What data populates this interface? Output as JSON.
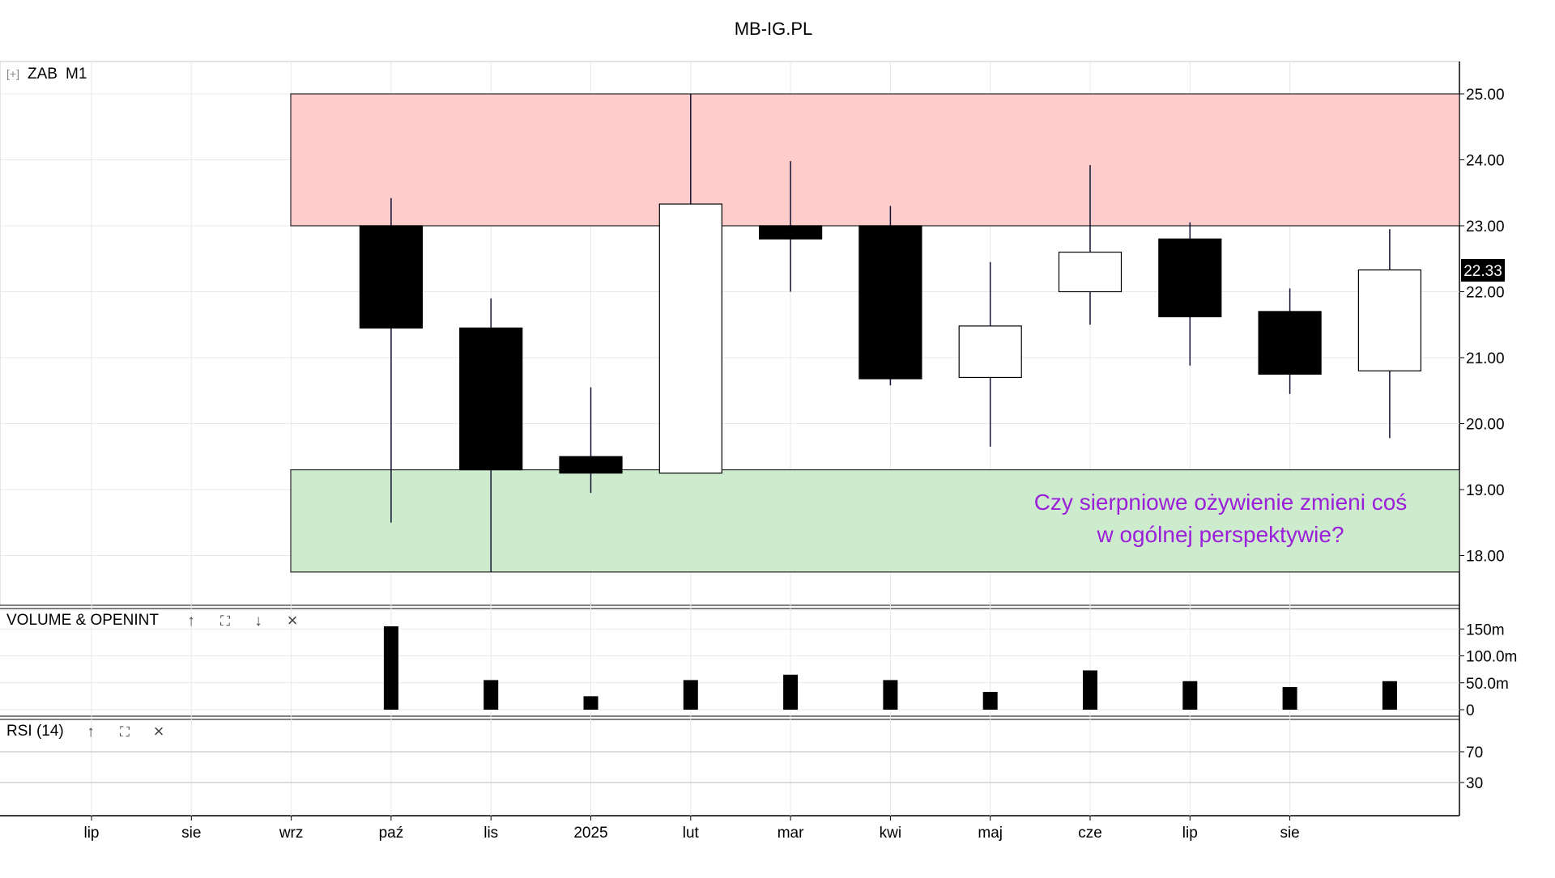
{
  "header": {
    "title": "MB-IG.PL"
  },
  "colors": {
    "zone_high": "#ffcccc",
    "zone_low": "#cdeccd",
    "annotation": "#9b1fd9",
    "candle_down": "#000000",
    "candle_up": "#ffffff",
    "grid": "#e8e8e8"
  },
  "price_panel": {
    "symbol_label": "ZAB",
    "interval_label": "M1",
    "expand_glyph": "[+]",
    "last_price_label": "22.33",
    "annotation_line1": "Czy sierpniowe ożywienie zmieni coś",
    "annotation_line2": "w ogólnej perspektywie?"
  },
  "volume_panel": {
    "label": "VOLUME & OPENINT",
    "up_icon": "↑",
    "max_icon": "⛶",
    "down_icon": "↓",
    "close_icon": "×"
  },
  "rsi_panel": {
    "label": "RSI (14)",
    "up_icon": "↑",
    "max_icon": "⛶",
    "close_icon": "×"
  },
  "chart_data": {
    "type": "candlestick",
    "symbol": "ZAB",
    "interval": "M1",
    "x_tick_labels": [
      "lip",
      "sie",
      "wrz",
      "paź",
      "lis",
      "2025",
      "lut",
      "mar",
      "kwi",
      "maj",
      "cze",
      "lip",
      "sie"
    ],
    "price_axis": {
      "ticks": [
        18,
        19,
        20,
        21,
        22,
        23,
        24,
        25
      ],
      "tick_labels": [
        "18.00",
        "19.00",
        "20.00",
        "21.00",
        "22.00",
        "23.00",
        "24.00",
        "25.00"
      ],
      "ylim": [
        17.4,
        25.5
      ]
    },
    "candles": [
      {
        "period": "2024-10",
        "open": 23.0,
        "high": 23.42,
        "low": 18.5,
        "close": 21.45
      },
      {
        "period": "2024-11",
        "open": 21.45,
        "high": 21.9,
        "low": 17.75,
        "close": 19.3
      },
      {
        "period": "2024-12",
        "open": 19.5,
        "high": 20.55,
        "low": 18.95,
        "close": 19.25
      },
      {
        "period": "2025-01",
        "open": 19.25,
        "high": 25.0,
        "low": 19.25,
        "close": 23.33
      },
      {
        "period": "2025-02",
        "open": 23.0,
        "high": 23.98,
        "low": 22.0,
        "close": 22.8
      },
      {
        "period": "2025-03",
        "open": 23.0,
        "high": 23.3,
        "low": 20.58,
        "close": 20.68
      },
      {
        "period": "2025-04",
        "open": 20.7,
        "high": 22.45,
        "low": 19.65,
        "close": 21.48
      },
      {
        "period": "2025-05",
        "open": 22.0,
        "high": 23.92,
        "low": 21.5,
        "close": 22.6
      },
      {
        "period": "2025-06",
        "open": 22.8,
        "high": 23.05,
        "low": 20.88,
        "close": 21.62
      },
      {
        "period": "2025-07",
        "open": 21.7,
        "high": 22.05,
        "low": 20.45,
        "close": 20.75
      },
      {
        "period": "2025-08",
        "open": 20.8,
        "high": 22.95,
        "low": 19.78,
        "close": 22.33
      }
    ],
    "zones": [
      {
        "from": 23.0,
        "to": 25.0,
        "color": "#ffcccc"
      },
      {
        "from": 17.75,
        "to": 19.3,
        "color": "#cdeccd"
      }
    ],
    "volume": {
      "label": "VOLUME & OPENINT",
      "ticks": [
        0,
        50,
        100,
        150
      ],
      "tick_labels": [
        "0",
        "50.0m",
        "100.0m",
        "150m"
      ],
      "unit": "m",
      "values": [
        155,
        55,
        25,
        55,
        65,
        55,
        33,
        73,
        53,
        42,
        53
      ]
    },
    "rsi": {
      "label": "RSI (14)",
      "levels": [
        70,
        30
      ],
      "level_labels": [
        "70",
        "30"
      ]
    }
  }
}
